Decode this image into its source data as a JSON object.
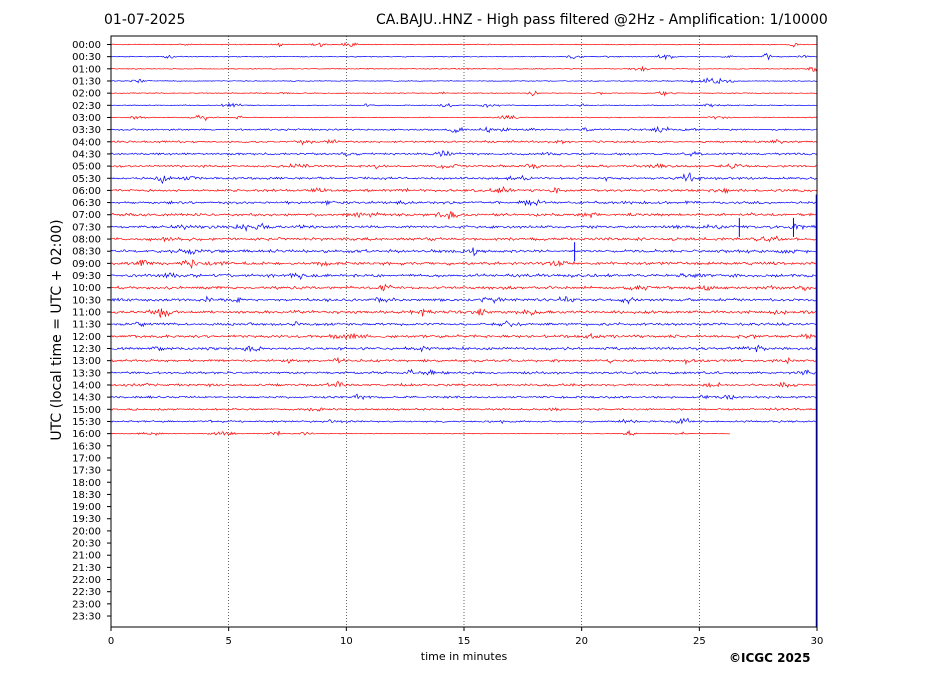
{
  "header": {
    "date": "01-07-2025",
    "title": "CA.BAJU..HNZ - High pass filtered @2Hz - Amplification: 1/10000"
  },
  "footer": {
    "credit": "©ICGC 2025"
  },
  "chart_data": {
    "type": "line",
    "title": "CA.BAJU..HNZ - High pass filtered @2Hz - Amplification: 1/10000",
    "xlabel": "time in minutes",
    "ylabel": "UTC (local time = UTC + 02:00)",
    "xlim": [
      0,
      30
    ],
    "xticks": [
      "0",
      "5",
      "10",
      "15",
      "20",
      "25",
      "30"
    ],
    "grid_x": true,
    "row_labels": [
      "00:00",
      "00:30",
      "01:00",
      "01:30",
      "02:00",
      "02:30",
      "03:00",
      "03:30",
      "04:00",
      "04:30",
      "05:00",
      "05:30",
      "06:00",
      "06:30",
      "07:00",
      "07:30",
      "08:00",
      "08:30",
      "09:00",
      "09:30",
      "10:00",
      "10:30",
      "11:00",
      "11:30",
      "12:00",
      "12:30",
      "13:00",
      "13:30",
      "14:00",
      "14:30",
      "15:00",
      "15:30",
      "16:00",
      "16:30",
      "17:00",
      "17:30",
      "18:00",
      "18:30",
      "19:00",
      "19:30",
      "20:00",
      "20:30",
      "21:00",
      "21:30",
      "22:00",
      "22:30",
      "23:00",
      "23:30"
    ],
    "series_colors": [
      "#ff0000",
      "#0000ff"
    ],
    "traces_recorded": 33,
    "last_trace_end_minutes": 26.3,
    "events": [
      {
        "row": "07:30",
        "minute": 26.7
      },
      {
        "row": "07:30",
        "minute": 29.0
      },
      {
        "row": "08:30",
        "minute": 19.7
      }
    ]
  }
}
